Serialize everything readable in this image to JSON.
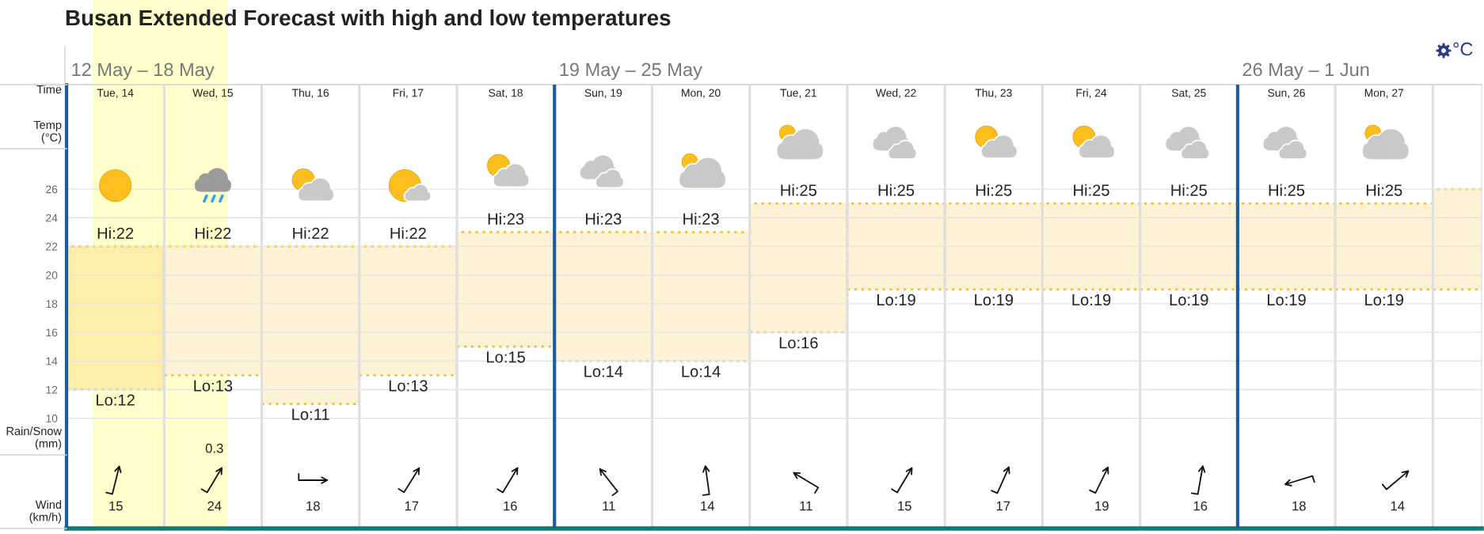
{
  "chart_data": [
    {
      "type": "bar",
      "title": "Busan Extended Forecast with high and low temperatures",
      "xlabel": "Time",
      "ylabel": "Temp\n(°C)",
      "categories": [
        "Tue, 14",
        "Wed, 15",
        "Thu, 16",
        "Fri, 17",
        "Sat, 18",
        "Sun, 19",
        "Mon, 20",
        "Tue, 21",
        "Wed, 22",
        "Thu, 23",
        "Fri, 24",
        "Sat, 25",
        "Sun, 26",
        "Mon, 27",
        null
      ],
      "base": [
        12,
        13,
        11,
        13,
        15,
        14,
        14,
        16,
        19,
        19,
        19,
        19,
        19,
        19,
        19
      ],
      "values": [
        10,
        9,
        11,
        9,
        8,
        9,
        9,
        9,
        6,
        6,
        6,
        6,
        6,
        6,
        7
      ],
      "colors": [
        "#fdeeaa",
        "#fdf2d6",
        "#fdf2d6",
        "#fdf2d6",
        "#fdf2d6",
        "#fdf2d6",
        "#fdf2d6",
        "#fdf2d6",
        "#fdf2d6",
        "#fdf2d6",
        "#fdf2d6",
        "#fdf2d6",
        "#fdf2d6",
        "#fdf2d6",
        "#fdf2d6"
      ],
      "ylim": [
        2.3,
        33.3
      ],
      "yticks": [
        10,
        12,
        14,
        16,
        18,
        20,
        22,
        24,
        26
      ],
      "grid": "y",
      "annotations": [
        "12 May – 18 May",
        "19 May – 25 May",
        "26 May – 1 Jun",
        "°C",
        {
          "text": "Hi:22",
          "x": "Tue, 14",
          "y": 22
        },
        {
          "text": "Lo:12",
          "x": "Tue, 14",
          "y": 12
        },
        {
          "text": "Hi:22",
          "x": "Wed, 15",
          "y": 22
        },
        {
          "text": "Lo:13",
          "x": "Wed, 15",
          "y": 13
        },
        {
          "text": "Hi:22",
          "x": "Thu, 16",
          "y": 22
        },
        {
          "text": "Lo:11",
          "x": "Thu, 16",
          "y": 11
        },
        {
          "text": "Hi:22",
          "x": "Fri, 17",
          "y": 22
        },
        {
          "text": "Lo:13",
          "x": "Fri, 17",
          "y": 13
        },
        {
          "text": "Hi:23",
          "x": "Sat, 18",
          "y": 23
        },
        {
          "text": "Lo:15",
          "x": "Sat, 18",
          "y": 15
        },
        {
          "text": "Hi:23",
          "x": "Sun, 19",
          "y": 23
        },
        {
          "text": "Lo:14",
          "x": "Sun, 19",
          "y": 14
        },
        {
          "text": "Hi:23",
          "x": "Mon, 20",
          "y": 23
        },
        {
          "text": "Lo:14",
          "x": "Mon, 20",
          "y": 14
        },
        {
          "text": "Hi:25",
          "x": "Tue, 21",
          "y": 25
        },
        {
          "text": "Lo:16",
          "x": "Tue, 21",
          "y": 16
        },
        {
          "text": "Hi:25",
          "x": "Wed, 22",
          "y": 25
        },
        {
          "text": "Lo:19",
          "x": "Wed, 22",
          "y": 19
        },
        {
          "text": "Hi:25",
          "x": "Thu, 23",
          "y": 25
        },
        {
          "text": "Lo:19",
          "x": "Thu, 23",
          "y": 19
        },
        {
          "text": "Hi:25",
          "x": "Fri, 24",
          "y": 25
        },
        {
          "text": "Lo:19",
          "x": "Fri, 24",
          "y": 19
        },
        {
          "text": "Hi:25",
          "x": "Sat, 25",
          "y": 25
        },
        {
          "text": "Lo:19",
          "x": "Sat, 25",
          "y": 19
        },
        {
          "text": "Hi:25",
          "x": "Sun, 26",
          "y": 25
        },
        {
          "text": "Lo:19",
          "x": "Sun, 26",
          "y": 19
        },
        {
          "text": "Hi:25",
          "x": "Mon, 27",
          "y": 25
        },
        {
          "text": "Lo:19",
          "x": "Mon, 27",
          "y": 19
        }
      ]
    },
    {
      "type": "other",
      "ylabel": "Rain/Snow\n(mm)",
      "values": [
        null,
        0.3,
        null,
        null,
        null,
        null,
        null,
        null,
        null,
        null,
        null,
        null,
        null,
        null,
        null
      ],
      "data_labels": true
    },
    {
      "type": "other",
      "ylabel": "Wind\n(km/h)",
      "values": [
        15,
        24,
        18,
        17,
        16,
        11,
        14,
        11,
        15,
        17,
        19,
        16,
        18,
        14,
        null
      ],
      "data_labels": true
    }
  ]
}
